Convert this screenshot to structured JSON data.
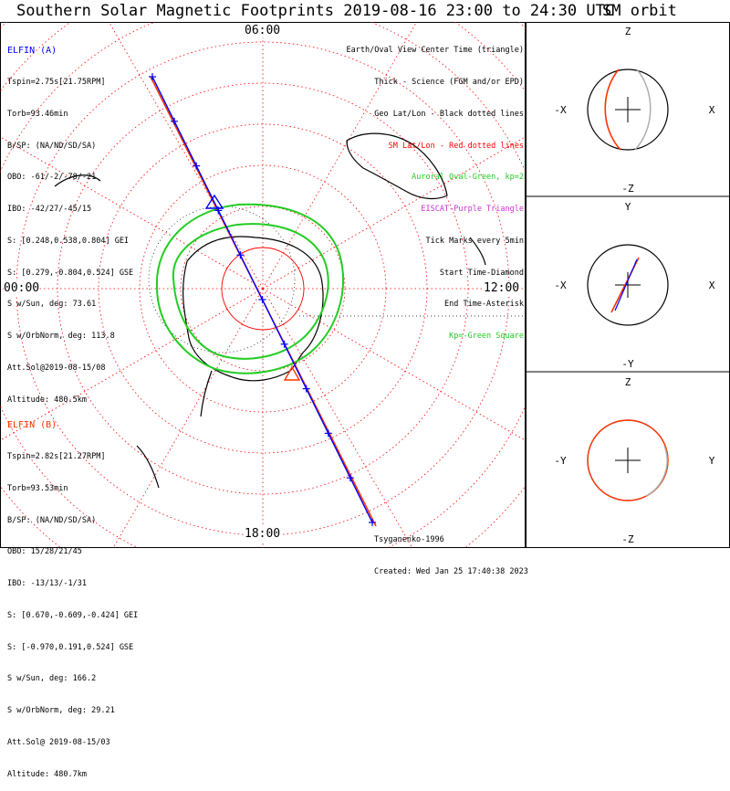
{
  "title": "Southern Solar Magnetic Footprints 2019-08-16 23:00 to 24:30 UTC",
  "orbit_title": "SM orbit",
  "colors": {
    "a": "#0000ff",
    "b": "#ff3300",
    "oval": "#22cc22",
    "grid_red": "#ff0000",
    "grid_black": "#000000",
    "purple": "#cc33cc"
  },
  "elfin_a": {
    "header": "ELFIN (A)",
    "lines": [
      "Tspin=2.75s[21.75RPM]",
      "Torb=93.46min",
      "B/SP: (NA/ND/SD/SA)",
      "OBO: -61/-2/-78/-21",
      "IBO: -42/27/-45/15",
      "S: [0.248,0.538,0.804] GEI",
      "S: [0.279,-0.804,0.524] GSE",
      "S w/Sun, deg: 73.61",
      "S w/OrbNorm, deg: 113.8",
      "Att.Sol@2019-08-15/08",
      "Altitude: 480.5km"
    ]
  },
  "elfin_b": {
    "header": "ELFIN (B)",
    "lines": [
      "Tspin=2.82s[21.27RPM]",
      "Torb=93.53min",
      "B/SP: (NA/ND/SD/SA)",
      "OBO: 15/28/21/45",
      "IBO: -13/13/-1/31",
      "S: [0.670,-0.609,-0.424] GEI",
      "S: [-0.970,0.191,0.524] GSE",
      "S w/Sun, deg: 166.2",
      "S w/OrbNorm, deg: 29.21",
      "Att.Sol@ 2019-08-15/03",
      "Altitude: 480.7km"
    ]
  },
  "legend": [
    {
      "text": "Earth/Oval View Center Time (triangle)",
      "color": "#000000"
    },
    {
      "text": "Thick - Science (FGM and/or EPD)",
      "color": "#000000"
    },
    {
      "text": "Geo Lat/Lon - Black dotted lines",
      "color": "#000000"
    },
    {
      "text": "SM Lat/Lon - Red dotted lines",
      "color": "#ff0000"
    },
    {
      "text": "Auroral Oval-Green, kp=2",
      "color": "#22cc22"
    },
    {
      "text": "EISCAT-Purple Triangle",
      "color": "#cc33cc"
    },
    {
      "text": "Tick Marks every 5min",
      "color": "#000000"
    },
    {
      "text": "Start Time-Diamond",
      "color": "#000000"
    },
    {
      "text": "End Time-Asterisk",
      "color": "#000000"
    },
    {
      "text": "Kp=-Green Square",
      "color": "#22cc22"
    }
  ],
  "mlt_labels": {
    "top": "06:00",
    "left": "00:00",
    "right": "12:00",
    "bottom": "18:00"
  },
  "footer": [
    "Tsyganenko-1996",
    "Created: Wed Jan 25 17:40:38 2023"
  ],
  "orbit_panels": [
    {
      "up": "Z",
      "down": "-Z",
      "left": "-X",
      "right": "X"
    },
    {
      "up": "Y",
      "down": "-Y",
      "left": "-X",
      "right": "X"
    },
    {
      "up": "Z",
      "down": "-Z",
      "left": "-Y",
      "right": "Y"
    }
  ],
  "chart_data": {
    "type": "polar-map",
    "title": "Southern Solar Magnetic Footprints 2019-08-16 23:00 to 24:30 UTC",
    "time_range": [
      "2019-08-16 23:00",
      "2019-08-17 00:30"
    ],
    "model": "Tsyganenko-1996",
    "kp": 2,
    "series": [
      {
        "name": "ELFIN (A)",
        "color": "#0000ff"
      },
      {
        "name": "ELFIN (B)",
        "color": "#ff3300"
      }
    ]
  }
}
